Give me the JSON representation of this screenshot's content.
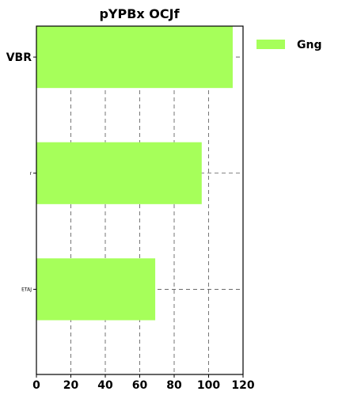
{
  "chart_data": {
    "type": "bar",
    "orientation": "horizontal",
    "title": "pYPBx OCJf",
    "categories": [
      "VBR",
      "r",
      "ETAJ"
    ],
    "series": [
      {
        "name": "Gng",
        "values": [
          114,
          96,
          69
        ],
        "color": "#a6ff5a"
      }
    ],
    "xlim": [
      0,
      120
    ],
    "xticks": [
      "0",
      "20",
      "40",
      "60",
      "80",
      "100",
      "120"
    ],
    "grid": true,
    "legend_position": "top-right"
  }
}
